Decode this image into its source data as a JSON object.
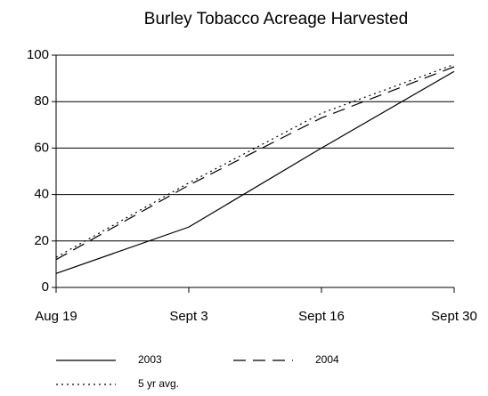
{
  "chart_data": {
    "type": "line",
    "title": "Burley Tobacco Acreage Harvested",
    "categories": [
      "Aug 19",
      "Sept 3",
      "Sept 16",
      "Sept 30"
    ],
    "series": [
      {
        "name": "2003",
        "color": "#000000",
        "style": "solid",
        "values": [
          6,
          26,
          60,
          93
        ]
      },
      {
        "name": "2004",
        "color": "#000000",
        "style": "dashed",
        "values": [
          12,
          44,
          73,
          95
        ]
      },
      {
        "name": "5 yr avg.",
        "color": "#000000",
        "style": "dotted",
        "values": [
          13,
          45,
          75,
          96
        ]
      }
    ],
    "ylim": [
      0,
      100
    ],
    "yticks": [
      0,
      20,
      40,
      60,
      80,
      100
    ],
    "grid": true
  }
}
